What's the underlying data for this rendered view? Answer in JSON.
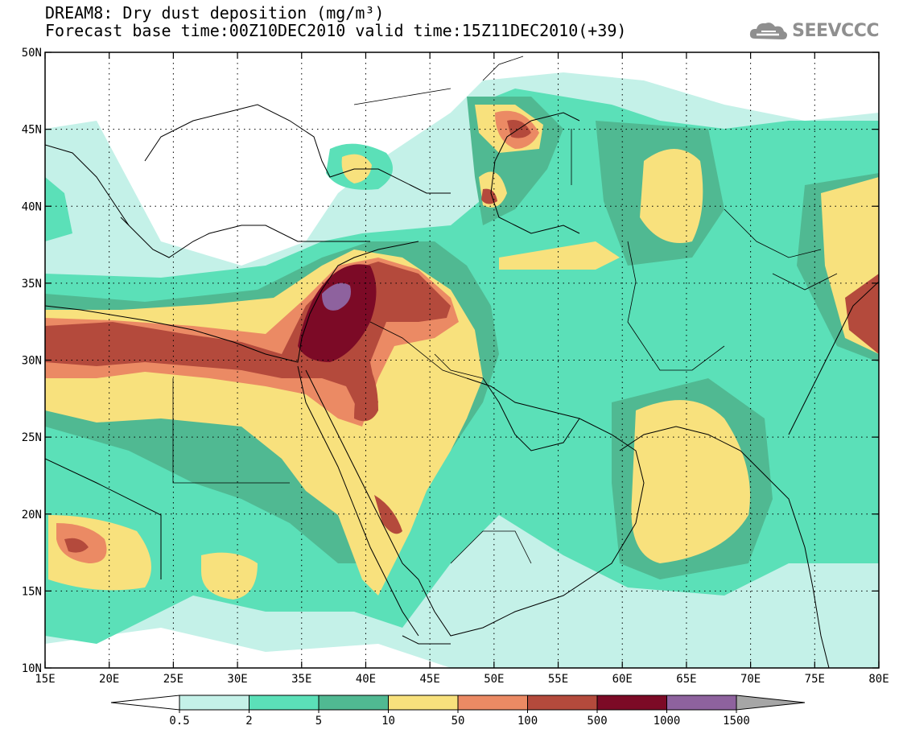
{
  "title": {
    "line1": "DREAM8: Dry dust deposition (mg/m³)",
    "line2": "Forecast base time:00Z10DEC2010 valid time:15Z11DEC2010(+39)"
  },
  "logo": {
    "text": "SEEVCCC",
    "icon": "cloud-icon"
  },
  "map": {
    "lon_ticks": [
      "15E",
      "20E",
      "25E",
      "30E",
      "35E",
      "40E",
      "45E",
      "50E",
      "55E",
      "60E",
      "65E",
      "70E",
      "75E",
      "80E"
    ],
    "lat_ticks": [
      "50N",
      "45N",
      "40N",
      "35N",
      "30N",
      "25N",
      "20N",
      "15N",
      "10N"
    ]
  },
  "legend": {
    "levels": [
      "0.5",
      "2",
      "5",
      "10",
      "50",
      "100",
      "500",
      "1000",
      "1500"
    ],
    "colors": [
      "#ffffff",
      "#c4f1e8",
      "#5be0b8",
      "#50b992",
      "#f8e17d",
      "#eb8a64",
      "#b44a3c",
      "#7c0a26",
      "#8e629e",
      "#a6a6a6"
    ]
  }
}
